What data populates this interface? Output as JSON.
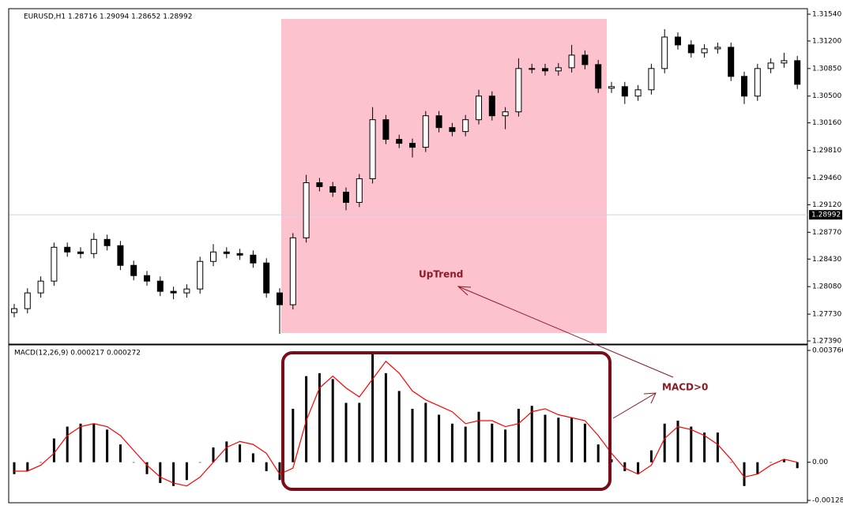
{
  "chart_data": [
    {
      "type": "candlestick",
      "title": "EURUSD,H1  1.28716 1.29094 1.28652 1.28992",
      "annotation": "UpTrend",
      "up_color": "#ffffff",
      "down_color": "#000000",
      "edge_color": "#000000",
      "open": [
        1.2775,
        1.278,
        1.28,
        1.2815,
        1.2858,
        1.2852,
        1.285,
        1.2868,
        1.286,
        1.2835,
        1.2822,
        1.2815,
        1.2802,
        1.28,
        1.2805,
        1.284,
        1.2852,
        1.285,
        1.2848,
        1.2838,
        1.28,
        1.2785,
        1.287,
        1.294,
        1.2935,
        1.2928,
        1.2915,
        1.2945,
        1.302,
        1.2995,
        1.299,
        1.2985,
        1.3025,
        1.301,
        1.3005,
        1.302,
        1.305,
        1.3025,
        1.303,
        1.3085,
        1.3085,
        1.3082,
        1.3086,
        1.3102,
        1.309,
        1.306,
        1.3062,
        1.305,
        1.3058,
        1.3085,
        1.3125,
        1.3115,
        1.3105,
        1.311,
        1.3112,
        1.3075,
        1.305,
        1.3085,
        1.3092,
        1.3095
      ],
      "high": [
        1.2786,
        1.2806,
        1.2821,
        1.2864,
        1.2864,
        1.2858,
        1.2876,
        1.2874,
        1.2866,
        1.2841,
        1.2828,
        1.2821,
        1.2808,
        1.2811,
        1.2846,
        1.2862,
        1.2858,
        1.2856,
        1.2854,
        1.2844,
        1.2806,
        1.2876,
        1.295,
        1.2946,
        1.2941,
        1.2934,
        1.2951,
        1.3036,
        1.3026,
        1.3001,
        1.2996,
        1.3031,
        1.3031,
        1.3016,
        1.3026,
        1.3058,
        1.3056,
        1.3036,
        1.3098,
        1.3091,
        1.3091,
        1.3092,
        1.3115,
        1.3108,
        1.3096,
        1.3068,
        1.3068,
        1.3064,
        1.3091,
        1.3135,
        1.3131,
        1.3121,
        1.3116,
        1.3118,
        1.3118,
        1.3081,
        1.3091,
        1.3098,
        1.3105,
        1.3101
      ],
      "low": [
        1.2769,
        1.2774,
        1.2794,
        1.2809,
        1.2846,
        1.2844,
        1.2844,
        1.2854,
        1.2829,
        1.2816,
        1.2809,
        1.2796,
        1.2792,
        1.2794,
        1.2799,
        1.2834,
        1.2844,
        1.2842,
        1.2832,
        1.2794,
        1.2748,
        1.2779,
        1.2864,
        1.2929,
        1.2922,
        1.2905,
        1.2909,
        1.2939,
        1.2989,
        1.2984,
        1.2972,
        1.2979,
        1.3004,
        1.2999,
        1.2999,
        1.3014,
        1.3019,
        1.3008,
        1.3024,
        1.3079,
        1.3076,
        1.3076,
        1.308,
        1.3084,
        1.3054,
        1.3054,
        1.304,
        1.3044,
        1.3052,
        1.3079,
        1.3109,
        1.3099,
        1.3099,
        1.3104,
        1.3069,
        1.304,
        1.3044,
        1.3079,
        1.3086,
        1.3059
      ],
      "close": [
        1.278,
        1.28,
        1.2815,
        1.2858,
        1.2852,
        1.285,
        1.2868,
        1.286,
        1.2835,
        1.2822,
        1.2815,
        1.2802,
        1.28,
        1.2805,
        1.284,
        1.2852,
        1.285,
        1.2848,
        1.2838,
        1.28,
        1.2785,
        1.287,
        1.294,
        1.2935,
        1.2928,
        1.2915,
        1.2945,
        1.302,
        1.2995,
        1.299,
        1.2985,
        1.3025,
        1.301,
        1.3005,
        1.302,
        1.305,
        1.3025,
        1.303,
        1.3085,
        1.3085,
        1.3082,
        1.3086,
        1.3102,
        1.309,
        1.306,
        1.3062,
        1.305,
        1.3058,
        1.3085,
        1.3125,
        1.3115,
        1.3105,
        1.311,
        1.3112,
        1.3075,
        1.305,
        1.3085,
        1.3092,
        1.3095,
        1.3065
      ],
      "ylim": [
        1.2739,
        1.3154
      ],
      "yticks": [
        {
          "value": 1.3154,
          "label": "1.31540"
        },
        {
          "value": 1.312,
          "label": "1.31200"
        },
        {
          "value": 1.3085,
          "label": "1.30850"
        },
        {
          "value": 1.305,
          "label": "1.30500"
        },
        {
          "value": 1.3016,
          "label": "1.30160"
        },
        {
          "value": 1.2981,
          "label": "1.29810"
        },
        {
          "value": 1.2946,
          "label": "1.29460"
        },
        {
          "value": 1.2912,
          "label": "1.29120"
        },
        {
          "value": 1.2877,
          "label": "1.28770"
        },
        {
          "value": 1.2843,
          "label": "1.28430"
        },
        {
          "value": 1.2808,
          "label": "1.28080"
        },
        {
          "value": 1.2773,
          "label": "1.27730"
        },
        {
          "value": 1.2739,
          "label": "1.27390"
        }
      ],
      "last_price": 1.28992
    },
    {
      "type": "macd",
      "title": "MACD(12,26,9) 0.000217 0.000272",
      "annotation": "MACD>0",
      "histogram": {
        "color": "#000000",
        "values": [
          -0.0004,
          -0.0003,
          0.0,
          0.0008,
          0.0012,
          0.0013,
          0.0013,
          0.0011,
          0.0006,
          0.0,
          -0.0004,
          -0.0007,
          -0.0008,
          -0.0006,
          0.0,
          0.0005,
          0.0007,
          0.0006,
          0.0003,
          -0.0003,
          -0.0006,
          0.0018,
          0.0029,
          0.003,
          0.0028,
          0.002,
          0.002,
          0.0037,
          0.003,
          0.0024,
          0.0018,
          0.002,
          0.0016,
          0.0013,
          0.0012,
          0.0017,
          0.0013,
          0.0011,
          0.0018,
          0.0019,
          0.0016,
          0.0015,
          0.0015,
          0.0013,
          0.0006,
          0.0001,
          -0.0003,
          -0.0004,
          0.0004,
          0.0013,
          0.0014,
          0.0012,
          0.001,
          0.001,
          0.0,
          -0.0008,
          -0.0004,
          0.0,
          0.0001,
          -0.0002
        ]
      },
      "signal": {
        "color": "#ff0000",
        "values": [
          -0.0003,
          -0.0003,
          -0.0001,
          0.0003,
          0.0009,
          0.0012,
          0.0013,
          0.0012,
          0.0009,
          0.0004,
          -0.0001,
          -0.0005,
          -0.0007,
          -0.0008,
          -0.0005,
          0.0,
          0.0005,
          0.0007,
          0.0006,
          0.0003,
          -0.0004,
          -0.0002,
          0.0014,
          0.0025,
          0.0029,
          0.0025,
          0.0022,
          0.0028,
          0.0034,
          0.003,
          0.0024,
          0.0021,
          0.0019,
          0.0017,
          0.0013,
          0.0014,
          0.0014,
          0.0012,
          0.0013,
          0.0017,
          0.0018,
          0.0016,
          0.0015,
          0.0014,
          0.0009,
          0.0003,
          -0.0002,
          -0.0004,
          -0.0001,
          0.0008,
          0.0012,
          0.0011,
          0.0009,
          0.0006,
          0.0001,
          -0.0005,
          -0.0004,
          -0.0001,
          0.0001,
          0.0
        ]
      },
      "ylim": [
        -0.001284,
        0.003766
      ],
      "yticks": [
        0.003766,
        {
          "value": 0,
          "label": "0.00"
        },
        {
          "value": -0.001284,
          "label": "-0.00128"
        }
      ]
    }
  ]
}
